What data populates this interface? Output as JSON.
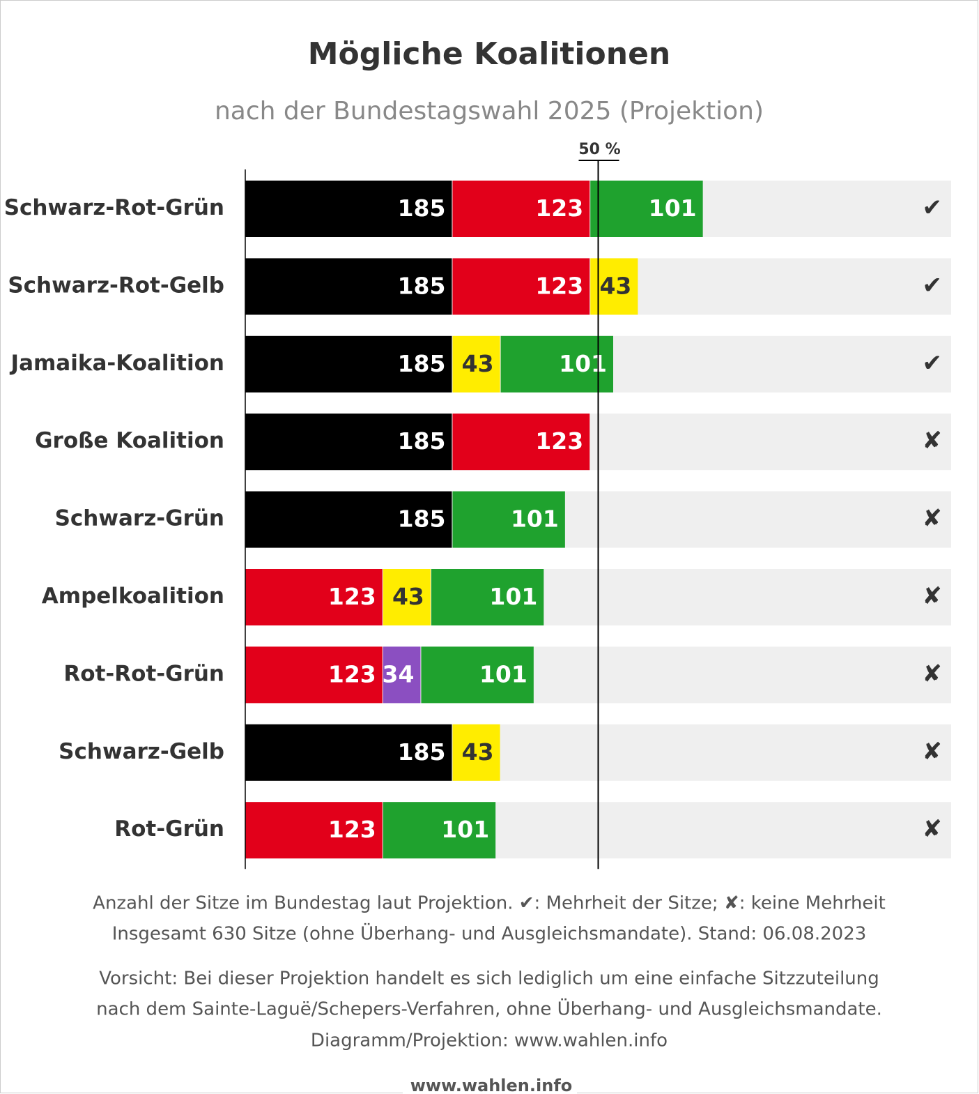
{
  "chart_data": {
    "type": "stacked-bar-horizontal",
    "title": "Mögliche Koalitionen",
    "subtitle": "nach der Bundestagswahl 2025 (Projektion)",
    "xlim": [
      0,
      630
    ],
    "threshold": {
      "value": 315,
      "label": "50 %"
    },
    "track_color": "#efefef",
    "rows": [
      {
        "name": "Schwarz-Rot-Grün",
        "values": [
          185,
          123,
          101
        ],
        "colors": [
          "#000000",
          "#e2001a",
          "#1fa22e"
        ],
        "mark": "✔"
      },
      {
        "name": "Schwarz-Rot-Gelb",
        "values": [
          185,
          123,
          43
        ],
        "colors": [
          "#000000",
          "#e2001a",
          "#ffed00"
        ],
        "mark": "✔"
      },
      {
        "name": "Jamaika-Koalition",
        "values": [
          185,
          43,
          101
        ],
        "colors": [
          "#000000",
          "#ffed00",
          "#1fa22e"
        ],
        "mark": "✔"
      },
      {
        "name": "Große Koalition",
        "values": [
          185,
          123
        ],
        "colors": [
          "#000000",
          "#e2001a"
        ],
        "mark": "✘"
      },
      {
        "name": "Schwarz-Grün",
        "values": [
          185,
          101
        ],
        "colors": [
          "#000000",
          "#1fa22e"
        ],
        "mark": "✘"
      },
      {
        "name": "Ampelkoalition",
        "values": [
          123,
          43,
          101
        ],
        "colors": [
          "#e2001a",
          "#ffed00",
          "#1fa22e"
        ],
        "mark": "✘"
      },
      {
        "name": "Rot-Rot-Grün",
        "values": [
          123,
          34,
          101
        ],
        "colors": [
          "#e2001a",
          "#8b4fc1",
          "#1fa22e"
        ],
        "mark": "✘"
      },
      {
        "name": "Schwarz-Gelb",
        "values": [
          185,
          43
        ],
        "colors": [
          "#000000",
          "#ffed00"
        ],
        "mark": "✘"
      },
      {
        "name": "Rot-Grün",
        "values": [
          123,
          101
        ],
        "colors": [
          "#e2001a",
          "#1fa22e"
        ],
        "mark": "✘"
      }
    ],
    "notes": [
      "Anzahl der Sitze im Bundestag laut Projektion. ✔: Mehrheit der Sitze; ✘: keine Mehrheit",
      "Insgesamt 630 Sitze (ohne Überhang- und Ausgleichsmandate). Stand: 06.08.2023",
      "Vorsicht: Bei dieser Projektion handelt es sich lediglich um eine einfache Sitzzuteilung",
      "nach dem Sainte-Laguë/Schepers-Verfahren, ohne Überhang- und Ausgleichsmandate.",
      "Diagramm/Projektion: www.wahlen.info"
    ],
    "watermark": "www.wahlen.info"
  }
}
